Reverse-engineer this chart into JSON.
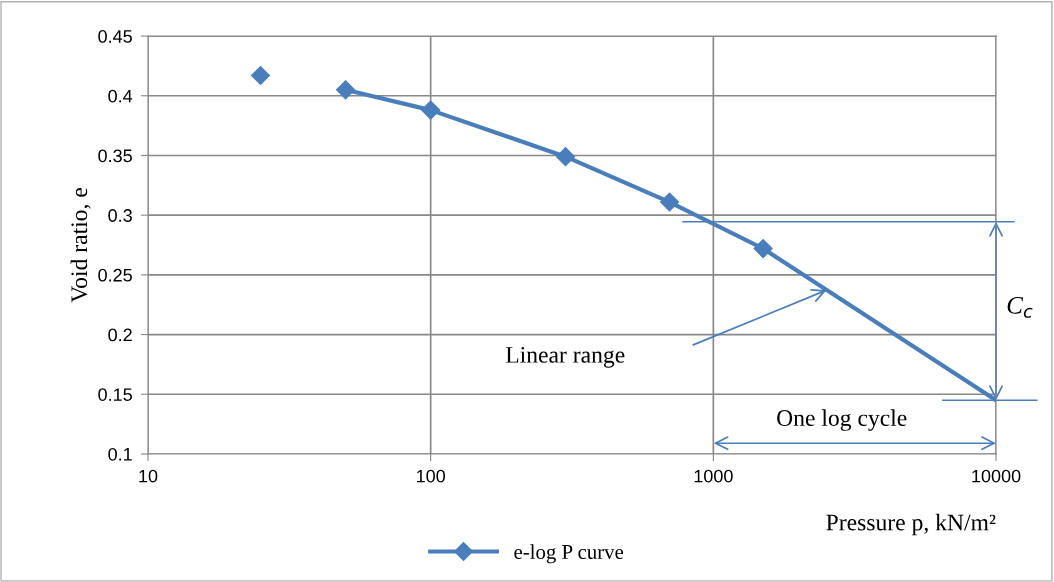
{
  "chart_data": {
    "type": "line",
    "xlabel": "Pressure p, kN/m²",
    "ylabel": "Void ratio, e",
    "series": [
      {
        "name": "e-log P curve",
        "color": "#4a7ebb",
        "marker": "diamond",
        "x": [
          50,
          100,
          300,
          700,
          1500
        ],
        "values": [
          0.405,
          0.388,
          0.349,
          0.311,
          0.272
        ]
      },
      {
        "color": "#4a7ebb",
        "marker": "none",
        "x": [
          1500,
          10000
        ],
        "values": [
          0.272,
          0.145
        ]
      },
      {
        "type": "scatter",
        "color": "#4a7ebb",
        "marker": "diamond",
        "x": [
          25
        ],
        "values": [
          0.417
        ]
      }
    ],
    "annotations": [
      "Linear range",
      "C$_{c}$",
      "One log cycle"
    ],
    "ref_lines": [
      {
        "axis": "y",
        "value": 0.2945,
        "color": "#4a7ebb"
      }
    ],
    "log": "x",
    "xlim": [
      10,
      10000
    ],
    "xticks": [
      10,
      100,
      1000,
      10000
    ],
    "ylim": [
      0.1,
      0.45
    ],
    "yticks": [
      0.1,
      0.15,
      0.2,
      0.25,
      0.3,
      0.35,
      0.4,
      0.45
    ],
    "grid": true,
    "legend": "bottom"
  }
}
